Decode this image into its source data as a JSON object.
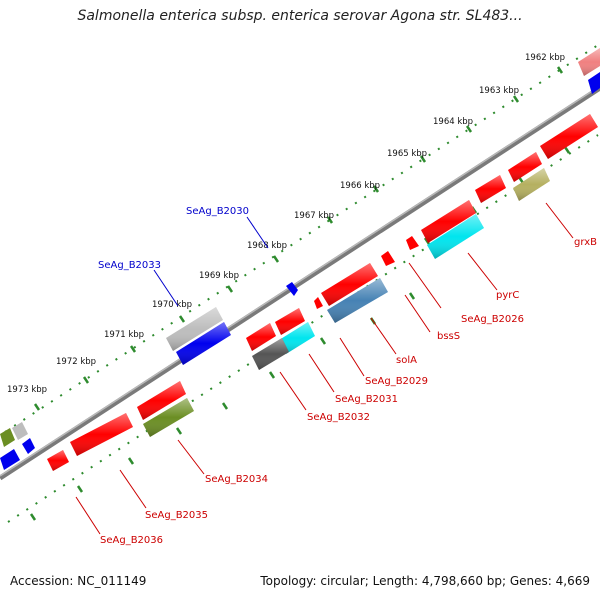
{
  "title": "Salmonella enterica subsp. enterica serovar Agona str. SL483...",
  "footer": {
    "accession": "Accession: NC_011149",
    "summary": "Topology: circular; Length: 4,798,660 bp; Genes: 4,669"
  },
  "colors": {
    "backbone": "#808080",
    "tick_dots": "#2e8b2e",
    "forward_gene": "#ff0000",
    "label_red": "#cc0000",
    "label_blue": "#0000cc",
    "blue_feature": "#0000ee",
    "gray_feature": "#bdbdbd",
    "dark_gray_feature": "#555555",
    "cyan_feature": "#00e5ee",
    "olive_feature": "#6b8e23",
    "khaki_feature": "#b5b060",
    "steelblue_feature": "#4682b4",
    "pink_feature": "#f08080"
  },
  "kbp_labels": [
    "1962 kbp",
    "1963 kbp",
    "1964 kbp",
    "1965 kbp",
    "1966 kbp",
    "1967 kbp",
    "1968 kbp",
    "1969 kbp",
    "1970 kbp",
    "1971 kbp",
    "1972 kbp",
    "1973 kbp"
  ],
  "gene_labels": {
    "red": [
      "grxB",
      "pyrC",
      "SeAg_B2026",
      "bssS",
      "solA",
      "SeAg_B2029",
      "SeAg_B2031",
      "SeAg_B2032",
      "SeAg_B2034",
      "SeAg_B2035",
      "SeAg_B2036"
    ],
    "blue": [
      "SeAg_B2030",
      "SeAg_B2033"
    ]
  }
}
